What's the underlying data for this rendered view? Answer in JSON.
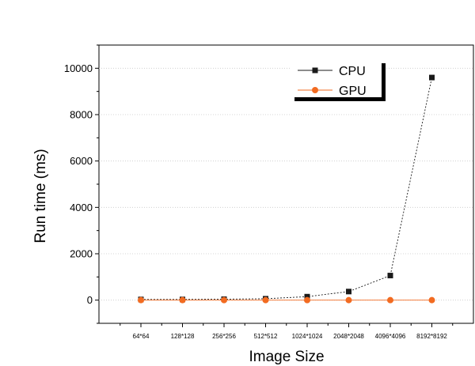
{
  "chart_data": {
    "type": "line",
    "title": "",
    "xlabel": "Image Size",
    "ylabel": "Run time (ms)",
    "categories": [
      "64*64",
      "128*128",
      "256*256",
      "512*512",
      "1024*1024",
      "2048*2048",
      "4096*4096",
      "8192*8192"
    ],
    "ylim": [
      -1000,
      11000
    ],
    "yticks": [
      0,
      2000,
      4000,
      6000,
      8000,
      10000
    ],
    "grid": true,
    "legend_position": "top-right",
    "series": [
      {
        "name": "CPU",
        "color": "#1a1a1a",
        "marker": "square",
        "line_style": "dotted",
        "values": [
          30,
          30,
          40,
          60,
          150,
          370,
          1060,
          9600
        ]
      },
      {
        "name": "GPU",
        "color": "#f26b21",
        "marker": "circle",
        "line_style": "solid",
        "values": [
          0,
          0,
          0,
          0,
          0,
          0,
          0,
          0
        ]
      }
    ]
  }
}
